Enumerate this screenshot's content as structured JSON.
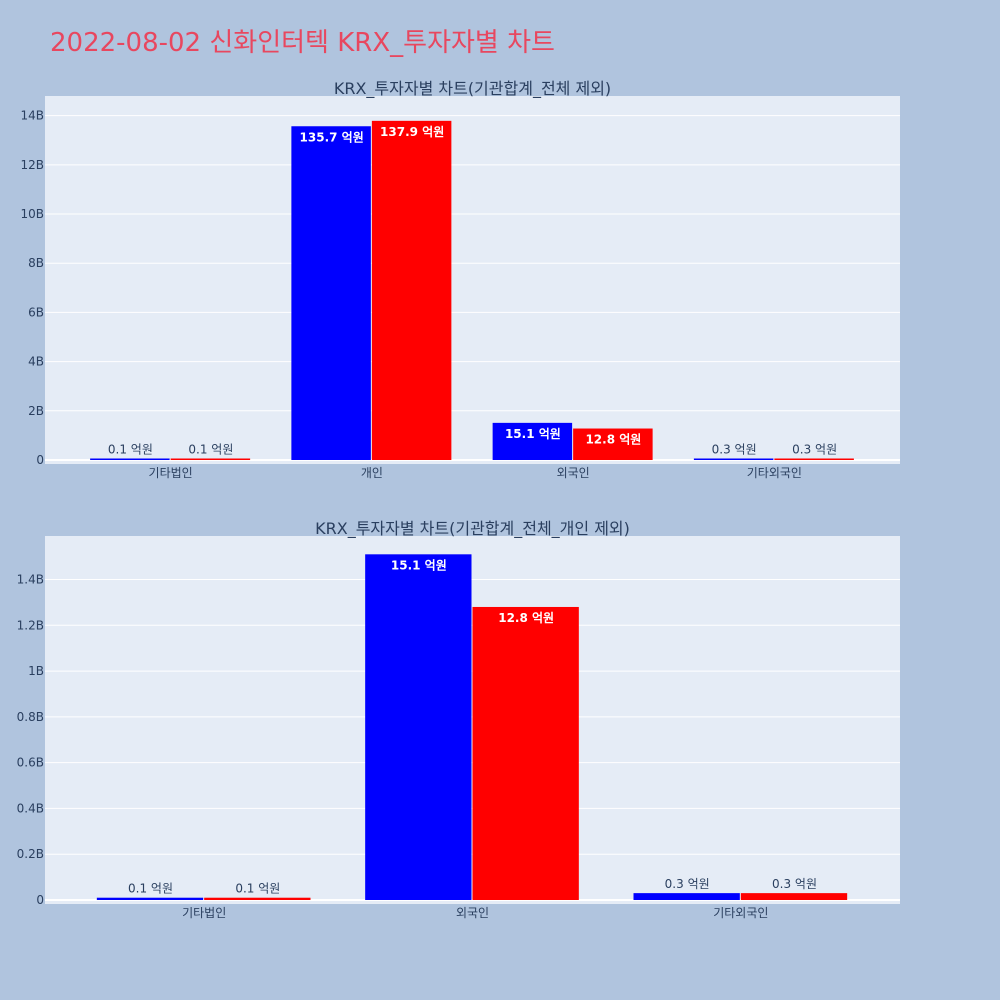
{
  "page": {
    "title": "2022-08-02 신화인터텍 KRX_투자자별 차트"
  },
  "colors": {
    "background": "#b0c4de",
    "plot_background": "#e5ecf6",
    "series_1": "#0000ff",
    "series_2": "#ff0000",
    "title": "#e8475f",
    "text": "#2a3f5f"
  },
  "chart_data": [
    {
      "type": "bar",
      "title": "KRX_투자자별 차트(기관합계_전체 제외)",
      "categories": [
        "기타법인",
        "개인",
        "외국인",
        "기타외국인"
      ],
      "series": [
        {
          "color": "#0000ff",
          "values": [
            10000000,
            13570000000,
            1510000000,
            30000000
          ],
          "labels": [
            "0.1 억원",
            "135.7 억원",
            "15.1 억원",
            "0.3 억원"
          ]
        },
        {
          "color": "#ff0000",
          "values": [
            10000000,
            13790000000,
            1280000000,
            30000000
          ],
          "labels": [
            "0.1 억원",
            "137.9 억원",
            "12.8 억원",
            "0.3 억원"
          ]
        }
      ],
      "ylim": [
        0,
        14800000000
      ],
      "yticks": [
        0,
        2000000000,
        4000000000,
        6000000000,
        8000000000,
        10000000000,
        12000000000,
        14000000000
      ],
      "ytick_labels": [
        "0",
        "2B",
        "4B",
        "6B",
        "8B",
        "10B",
        "12B",
        "14B"
      ],
      "grid": true
    },
    {
      "type": "bar",
      "title": "KRX_투자자별 차트(기관합계_전체_개인 제외)",
      "categories": [
        "기타법인",
        "외국인",
        "기타외국인"
      ],
      "series": [
        {
          "color": "#0000ff",
          "values": [
            10000000,
            1510000000,
            30000000
          ],
          "labels": [
            "0.1 억원",
            "15.1 억원",
            "0.3 억원"
          ]
        },
        {
          "color": "#ff0000",
          "values": [
            10000000,
            1280000000,
            30000000
          ],
          "labels": [
            "0.1 억원",
            "12.8 억원",
            "0.3 억원"
          ]
        }
      ],
      "ylim": [
        0,
        1590000000
      ],
      "yticks": [
        0,
        200000000,
        400000000,
        600000000,
        800000000,
        1000000000,
        1200000000,
        1400000000
      ],
      "ytick_labels": [
        "0",
        "0.2B",
        "0.4B",
        "0.6B",
        "0.8B",
        "1B",
        "1.2B",
        "1.4B"
      ],
      "grid": true
    }
  ]
}
